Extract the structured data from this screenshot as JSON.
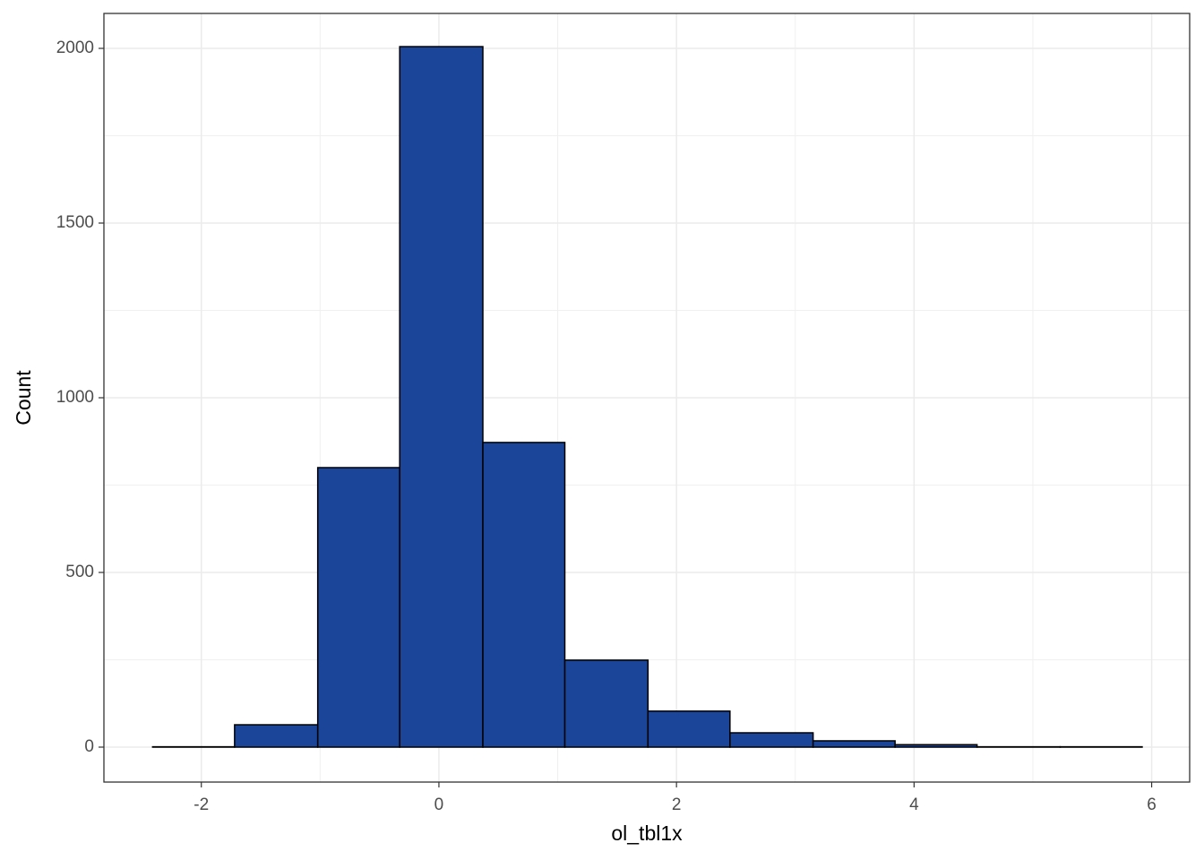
{
  "chart_data": {
    "type": "histogram",
    "x_label": "ol_tbl1x",
    "y_label": "Count",
    "bins": [
      -2.41,
      -1.72,
      -1.02,
      -0.33,
      0.37,
      1.06,
      1.76,
      2.45,
      3.15,
      3.84,
      4.53,
      5.23,
      5.92
    ],
    "values": [
      1,
      64,
      800,
      2005,
      872,
      249,
      103,
      41,
      18,
      7,
      1,
      1
    ],
    "color": "#1a4599",
    "edge_color": "#000000",
    "xlim": [
      -2.82,
      6.32
    ],
    "xticks": [
      -2,
      0,
      2,
      4,
      6
    ],
    "x_minor_grid": [
      -1,
      1,
      3,
      5
    ],
    "ylim": [
      -100,
      2100
    ],
    "yticks": [
      0,
      500,
      1000,
      1500,
      2000
    ],
    "y_minor_grid": [
      250,
      750,
      1250,
      1750
    ],
    "grid": true
  }
}
